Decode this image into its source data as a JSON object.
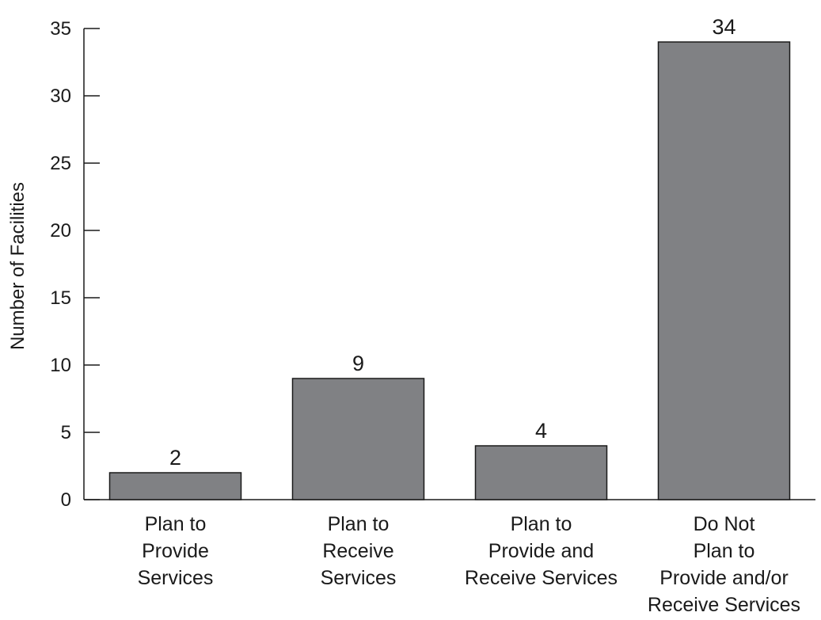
{
  "chart_data": {
    "type": "bar",
    "title": "",
    "xlabel": "",
    "ylabel": "Number of Facilities",
    "ylim": [
      0,
      35
    ],
    "yticks": [
      0,
      5,
      10,
      15,
      20,
      25,
      30,
      35
    ],
    "grid": false,
    "legend": "none",
    "bar_color": "#808184",
    "categories": [
      [
        "Plan to",
        "Provide",
        "Services"
      ],
      [
        "Plan to",
        "Receive",
        "Services"
      ],
      [
        "Plan to",
        "Provide and",
        "Receive Services"
      ],
      [
        "Do Not",
        "Plan to",
        "Provide and/or",
        "Receive Services"
      ]
    ],
    "values": [
      2,
      9,
      4,
      34
    ],
    "data_labels": [
      "2",
      "9",
      "4",
      "34"
    ]
  }
}
